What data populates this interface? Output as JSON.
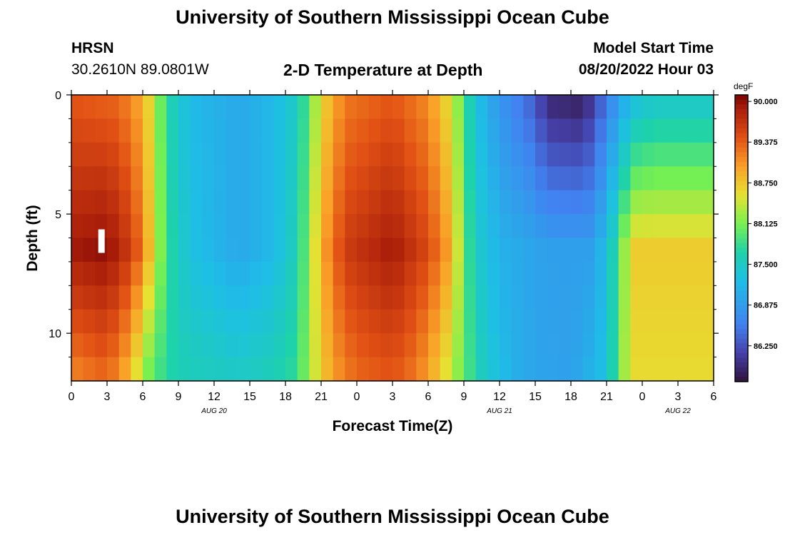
{
  "page": {
    "title": "University of Southern Mississippi Ocean Cube",
    "footer_title": "University of Southern Mississippi Ocean Cube",
    "station_name": "HRSN",
    "station_coords": "30.2610N  89.0801W",
    "model_start_label": "Model Start Time",
    "model_start_value": "08/20/2022 Hour 03"
  },
  "chart_data": {
    "type": "heatmap",
    "title": "2-D Temperature at Depth",
    "xlabel": "Forecast Time(Z)",
    "ylabel": "Depth (ft)",
    "x_tick_labels": [
      "0",
      "3",
      "6",
      "9",
      "12",
      "15",
      "18",
      "21",
      "0",
      "3",
      "6",
      "9",
      "12",
      "15",
      "18",
      "21",
      "0",
      "3",
      "6"
    ],
    "date_labels": [
      {
        "label": "AUG 20",
        "hour_index": 12
      },
      {
        "label": "AUG 21",
        "hour_index": 36
      },
      {
        "label": "AUG 22",
        "hour_index": 51
      }
    ],
    "x_range_hours": [
      0,
      54
    ],
    "ylim": [
      0,
      12
    ],
    "y_tick_labels": [
      "0",
      "5",
      "10"
    ],
    "y_tick_values": [
      0,
      5,
      10
    ],
    "colorbar": {
      "unit": "degF",
      "min": 85.7,
      "max": 90.1,
      "labels": [
        "90.000",
        "89.375",
        "88.750",
        "88.125",
        "87.500",
        "86.875",
        "86.250"
      ],
      "label_values": [
        90.0,
        89.375,
        88.75,
        88.125,
        87.5,
        86.875,
        86.25
      ]
    },
    "surface_profile_degF": [
      {
        "hour": 0,
        "value": 89.4
      },
      {
        "hour": 4,
        "value": 89.3
      },
      {
        "hour": 6,
        "value": 88.9
      },
      {
        "hour": 7,
        "value": 88.4
      },
      {
        "hour": 8,
        "value": 87.7
      },
      {
        "hour": 10,
        "value": 87.2
      },
      {
        "hour": 14,
        "value": 87.0
      },
      {
        "hour": 17,
        "value": 87.2
      },
      {
        "hour": 19,
        "value": 87.5
      },
      {
        "hour": 20,
        "value": 88.0
      },
      {
        "hour": 21,
        "value": 88.6
      },
      {
        "hour": 23,
        "value": 89.2
      },
      {
        "hour": 27,
        "value": 89.4
      },
      {
        "hour": 30,
        "value": 89.1
      },
      {
        "hour": 32,
        "value": 88.5
      },
      {
        "hour": 33,
        "value": 87.9
      },
      {
        "hour": 34,
        "value": 87.3
      },
      {
        "hour": 36,
        "value": 86.8
      },
      {
        "hour": 39,
        "value": 86.3
      },
      {
        "hour": 40,
        "value": 85.9
      },
      {
        "hour": 43,
        "value": 85.8
      },
      {
        "hour": 45,
        "value": 86.5
      },
      {
        "hour": 47,
        "value": 87.2
      },
      {
        "hour": 49,
        "value": 87.4
      },
      {
        "hour": 54,
        "value": 87.4
      }
    ],
    "mid_profile_degF": [
      {
        "hour": 0,
        "value": 89.9
      },
      {
        "hour": 3,
        "value": 90.0
      },
      {
        "hour": 5,
        "value": 89.6
      },
      {
        "hour": 6,
        "value": 89.2
      },
      {
        "hour": 7,
        "value": 88.5
      },
      {
        "hour": 8,
        "value": 87.8
      },
      {
        "hour": 10,
        "value": 87.3
      },
      {
        "hour": 14,
        "value": 87.0
      },
      {
        "hour": 17,
        "value": 87.2
      },
      {
        "hour": 19,
        "value": 87.6
      },
      {
        "hour": 20,
        "value": 88.2
      },
      {
        "hour": 21,
        "value": 88.9
      },
      {
        "hour": 23,
        "value": 89.6
      },
      {
        "hour": 27,
        "value": 89.9
      },
      {
        "hour": 30,
        "value": 89.5
      },
      {
        "hour": 32,
        "value": 88.9
      },
      {
        "hour": 33,
        "value": 88.0
      },
      {
        "hour": 34,
        "value": 87.5
      },
      {
        "hour": 36,
        "value": 87.1
      },
      {
        "hour": 40,
        "value": 86.9
      },
      {
        "hour": 44,
        "value": 86.9
      },
      {
        "hour": 46,
        "value": 87.8
      },
      {
        "hour": 47,
        "value": 88.7
      },
      {
        "hour": 54,
        "value": 88.7
      }
    ],
    "bottom_profile_degF": [
      {
        "hour": 0,
        "value": 89.1
      },
      {
        "hour": 3,
        "value": 89.3
      },
      {
        "hour": 5,
        "value": 88.8
      },
      {
        "hour": 6,
        "value": 88.2
      },
      {
        "hour": 7,
        "value": 87.9
      },
      {
        "hour": 9,
        "value": 87.6
      },
      {
        "hour": 14,
        "value": 87.5
      },
      {
        "hour": 17,
        "value": 87.6
      },
      {
        "hour": 19,
        "value": 87.8
      },
      {
        "hour": 20,
        "value": 88.3
      },
      {
        "hour": 22,
        "value": 89.0
      },
      {
        "hour": 24,
        "value": 89.3
      },
      {
        "hour": 27,
        "value": 89.4
      },
      {
        "hour": 29,
        "value": 89.2
      },
      {
        "hour": 31,
        "value": 88.7
      },
      {
        "hour": 33,
        "value": 88.0
      },
      {
        "hour": 35,
        "value": 87.4
      },
      {
        "hour": 38,
        "value": 87.0
      },
      {
        "hour": 42,
        "value": 86.9
      },
      {
        "hour": 45,
        "value": 87.3
      },
      {
        "hour": 46,
        "value": 88.0
      },
      {
        "hour": 47,
        "value": 88.6
      },
      {
        "hour": 54,
        "value": 88.6
      }
    ],
    "depth_grid_ft": [
      0,
      1,
      2,
      3,
      4,
      5,
      6,
      7,
      8,
      9,
      10,
      11,
      12
    ],
    "marker": {
      "hour": 2.5,
      "depth_ft": 6
    }
  }
}
